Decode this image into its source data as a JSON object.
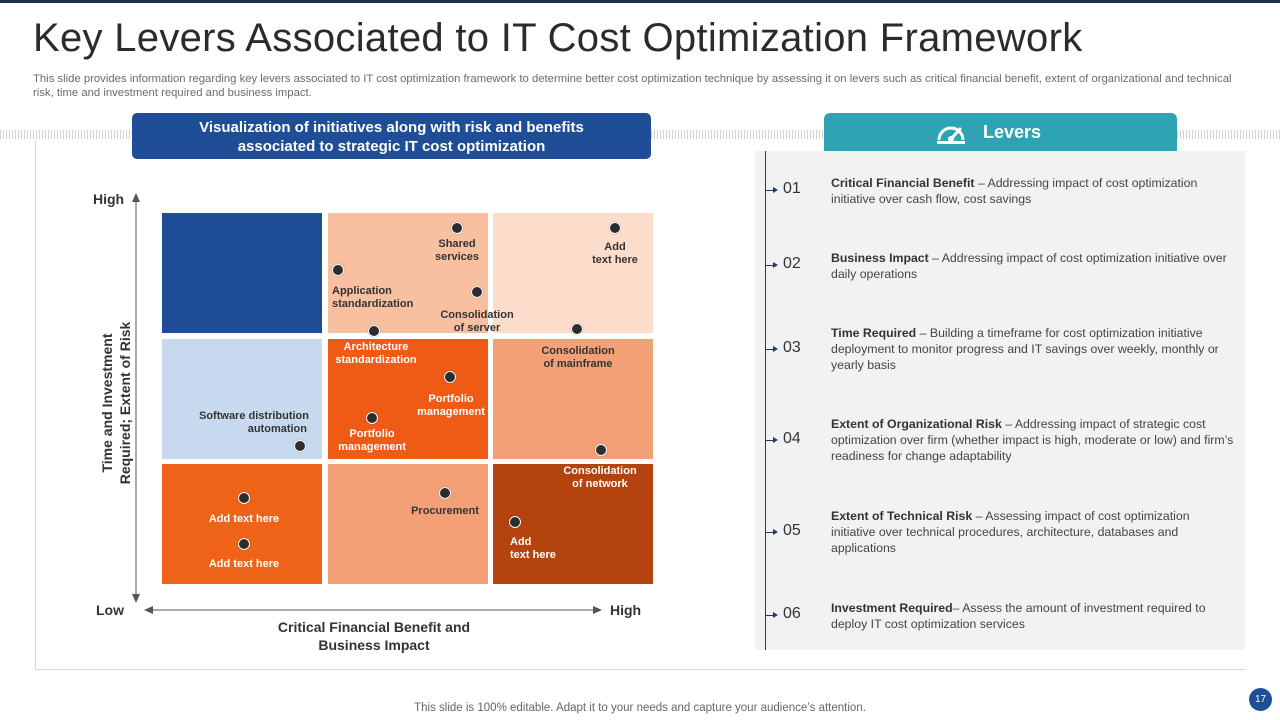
{
  "slide": {
    "title": "Key Levers Associated to IT Cost Optimization Framework",
    "subtitle": "This slide provides information regarding key levers associated to IT cost optimization framework to determine better cost optimization technique by assessing it on levers such as critical financial benefit, extent of organizational and technical risk, time and investment required and business impact.",
    "footer": "This slide is 100% editable. Adapt it to your needs and capture your audience’s attention.",
    "page_number": "17"
  },
  "matrix": {
    "header_line1": "Visualization of initiatives along with risk and benefits",
    "header_line2": "associated to strategic IT cost optimization",
    "y_axis_line1": "Time and Investment",
    "y_axis_line2": "Required; Extent of Risk",
    "x_axis_line1": "Critical Financial Benefit and",
    "x_axis_line2": "Business Impact",
    "y_high": "High",
    "x_low": "Low",
    "x_high": "High",
    "colors": {
      "navy": "#1f4e97",
      "peach": "#f8bfa0",
      "light_peach": "#fcdcca",
      "light_blue": "#c8d8ef",
      "orange": "#ef5a14",
      "salmon": "#f4a077",
      "deep_orange": "#ef6318",
      "brown": "#b5430d"
    },
    "items": {
      "shared_services_1": "Shared",
      "shared_services_2": "services",
      "add_text_top_1": "Add",
      "add_text_top_2": "text here",
      "app_std_1": "Application",
      "app_std_2": "standardization",
      "consol_server_1": "Consolidation",
      "consol_server_2": "of server",
      "arch_std_1": "Architecture",
      "arch_std_2": "standardization",
      "consol_mainframe_1": "Consolidation",
      "consol_mainframe_2": "of mainframe",
      "portfolio_a_1": "Portfolio",
      "portfolio_a_2": "management",
      "portfolio_b_1": "Portfolio",
      "portfolio_b_2": "management",
      "software_dist_1": "Software distribution",
      "software_dist_2": "automation",
      "consol_network_1": "Consolidation",
      "consol_network_2": "of network",
      "add_text_1": "Add text here",
      "add_text_2": "Add text here",
      "procurement": "Procurement",
      "add_text_bottom_1": "Add",
      "add_text_bottom_2": "text here"
    }
  },
  "levers": {
    "title": "Levers",
    "icon": "speedometer-icon",
    "items": [
      {
        "num": "01",
        "title": "Critical Financial Benefit",
        "sep": " – ",
        "text": "Addressing impact of cost optimization initiative over cash flow, cost savings"
      },
      {
        "num": "02",
        "title": "Business  Impact",
        "sep": " – ",
        "text": "Addressing impact of cost optimization initiative over daily operations"
      },
      {
        "num": "03",
        "title": "Time Required",
        "sep": " – ",
        "text": "Building a timeframe for cost optimization initiative deployment to monitor progress and IT savings over weekly, monthly or yearly basis"
      },
      {
        "num": "04",
        "title": "Extent of Organizational Risk",
        "sep": " – ",
        "text": "Addressing impact of strategic cost optimization over firm (whether impact is high, moderate or low) and firm’s readiness for change adaptability"
      },
      {
        "num": "05",
        "title": "Extent of Technical Risk",
        "sep": " – ",
        "text": "Assessing impact of cost optimization initiative over technical procedures, architecture, databases and applications"
      },
      {
        "num": "06",
        "title": "Investment Required",
        "sep": "– ",
        "text": "Assess the amount of investment required to deploy IT cost optimization services"
      }
    ]
  }
}
